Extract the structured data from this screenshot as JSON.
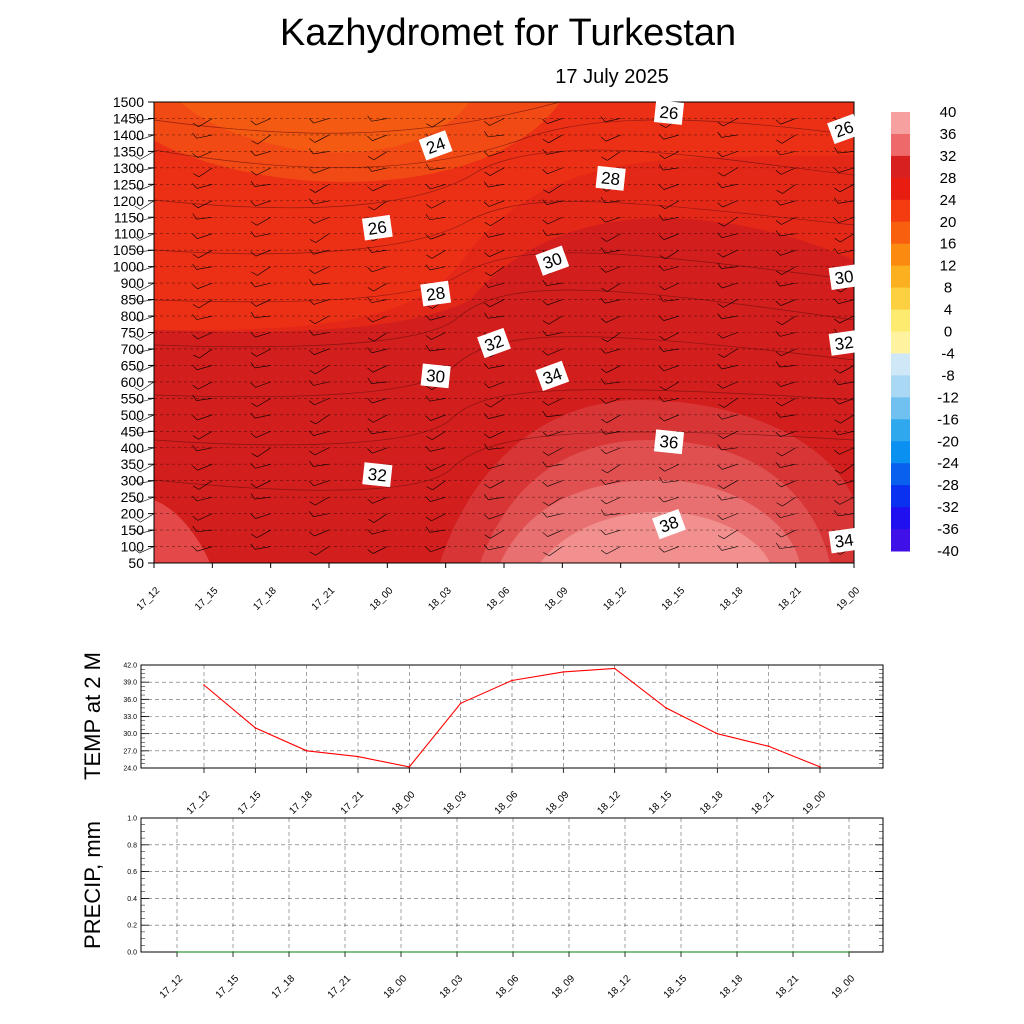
{
  "title": "Kazhydromet  for Turkestan",
  "subtitle": "17 July 2025",
  "chart_data": [
    {
      "type": "heatmap",
      "title": "Kazhydromet  for Turkestan",
      "subtitle": "17 July 2025",
      "x": [
        "17_12",
        "17_15",
        "17_18",
        "17_21",
        "18_00",
        "18_03",
        "18_06",
        "18_09",
        "18_12",
        "18_15",
        "18_18",
        "18_21",
        "19_00"
      ],
      "y": [
        50,
        100,
        150,
        200,
        250,
        300,
        350,
        400,
        450,
        500,
        550,
        600,
        650,
        700,
        750,
        800,
        850,
        900,
        1000,
        1050,
        1100,
        1150,
        1200,
        1250,
        1300,
        1350,
        1400,
        1450,
        1500
      ],
      "colorbar_ticks": [
        40,
        36,
        32,
        28,
        24,
        20,
        16,
        12,
        8,
        4,
        0,
        -4,
        -8,
        -12,
        -16,
        -20,
        -24,
        -28,
        -32,
        -36,
        -40
      ],
      "contour_labels": [
        {
          "text": "24",
          "x": "18_03",
          "y": 1350
        },
        {
          "text": "26",
          "x": "18_00",
          "y": 1100
        },
        {
          "text": "26",
          "x": "18_15",
          "y": 1450
        },
        {
          "text": "26",
          "x": "19_00",
          "y": 1400
        },
        {
          "text": "28",
          "x": "18_03",
          "y": 850
        },
        {
          "text": "28",
          "x": "18_12",
          "y": 1250
        },
        {
          "text": "30",
          "x": "18_09",
          "y": 1000
        },
        {
          "text": "30",
          "x": "19_00",
          "y": 900
        },
        {
          "text": "30",
          "x": "18_03",
          "y": 600
        },
        {
          "text": "32",
          "x": "18_06",
          "y": 700
        },
        {
          "text": "32",
          "x": "19_00",
          "y": 700
        },
        {
          "text": "32",
          "x": "18_00",
          "y": 300
        },
        {
          "text": "34",
          "x": "18_09",
          "y": 600
        },
        {
          "text": "34",
          "x": "19_00",
          "y": 100
        },
        {
          "text": "36",
          "x": "18_15",
          "y": 400
        },
        {
          "text": "38",
          "x": "18_15",
          "y": 150
        }
      ]
    },
    {
      "type": "line",
      "ylabel": "TEMP at 2 M",
      "x": [
        "17_12",
        "17_15",
        "17_18",
        "17_21",
        "18_00",
        "18_03",
        "18_06",
        "18_09",
        "18_12",
        "18_15",
        "18_18",
        "18_21",
        "19_00"
      ],
      "y_ticks": [
        "42.0",
        "39.0",
        "36.0",
        "33.0",
        "30.0",
        "27.0",
        "24.0"
      ],
      "ylim": [
        24,
        42
      ],
      "grid": true,
      "series": [
        {
          "values": [
            38.5,
            31.0,
            27.0,
            26.0,
            24.2,
            35.3,
            39.3,
            40.8,
            41.4,
            34.5,
            30.0,
            27.8,
            24.2
          ],
          "color": "#ff0000"
        }
      ]
    },
    {
      "type": "line",
      "ylabel": "PRECIP, mm",
      "x": [
        "17_12",
        "17_15",
        "17_18",
        "17_21",
        "18_00",
        "18_03",
        "18_06",
        "18_09",
        "18_12",
        "18_15",
        "18_18",
        "18_21",
        "19_00"
      ],
      "y_ticks": [
        "1.0",
        "0.8",
        "0.6",
        "0.4",
        "0.2",
        "0.0"
      ],
      "ylim": [
        0,
        1
      ],
      "grid": true,
      "series": [
        {
          "values": [
            0,
            0,
            0,
            0,
            0,
            0,
            0,
            0,
            0,
            0,
            0,
            0,
            0
          ],
          "color": "#008000"
        }
      ]
    }
  ]
}
